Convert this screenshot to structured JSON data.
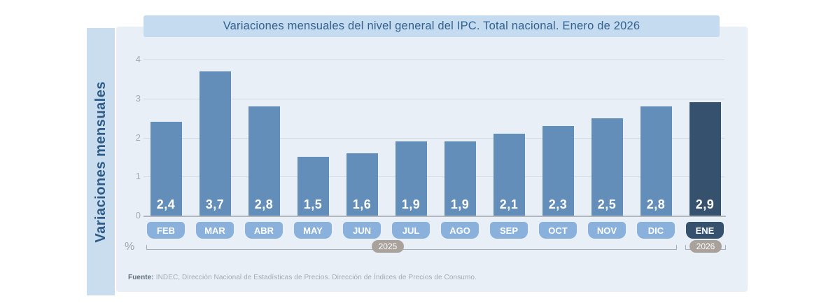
{
  "title": "Variaciones mensuales del nivel general del IPC. Total nacional. Enero de 2026",
  "y_axis_title": "Variaciones mensuales",
  "unit_symbol": "%",
  "footer": {
    "source_label": "Fuente:",
    "source_text": " INDEC, Dirección Nacional de Estadísticas de Precios. Dirección de Índices de Precios de Consumo."
  },
  "chart_data": {
    "type": "bar",
    "title": "Variaciones mensuales del nivel general del IPC. Total nacional. Enero de 2026",
    "ylabel": "Variaciones mensuales",
    "unit": "%",
    "categories": [
      "FEB",
      "MAR",
      "ABR",
      "MAY",
      "JUN",
      "JUL",
      "AGO",
      "SEP",
      "OCT",
      "NOV",
      "DIC",
      "ENE"
    ],
    "values": [
      2.4,
      3.7,
      2.8,
      1.5,
      1.6,
      1.9,
      1.9,
      2.1,
      2.3,
      2.5,
      2.8,
      2.9
    ],
    "value_labels": [
      "2,4",
      "3,7",
      "2,8",
      "1,5",
      "1,6",
      "1,9",
      "1,9",
      "2,1",
      "2,3",
      "2,5",
      "2,8",
      "2,9"
    ],
    "highlight_index": 11,
    "year_groups": [
      {
        "label": "2025",
        "start": 0,
        "end": 10
      },
      {
        "label": "2026",
        "start": 11,
        "end": 11
      }
    ],
    "y_ticks": [
      0,
      1,
      2,
      3,
      4
    ],
    "ylim": [
      0,
      4
    ],
    "grid": true,
    "legend": "none",
    "colors": {
      "bar": "#628eb9",
      "bar_highlight": "#35516e",
      "month_pill": "#8ab1dc",
      "month_pill_highlight": "#35516e",
      "year_pill": "#a8a29b",
      "panel_bg": "#e9eff7",
      "band_bg": "#c9ddee",
      "title_bg": "#c5dbef",
      "title_text": "#33608f",
      "value_text": "#ffffff"
    }
  }
}
